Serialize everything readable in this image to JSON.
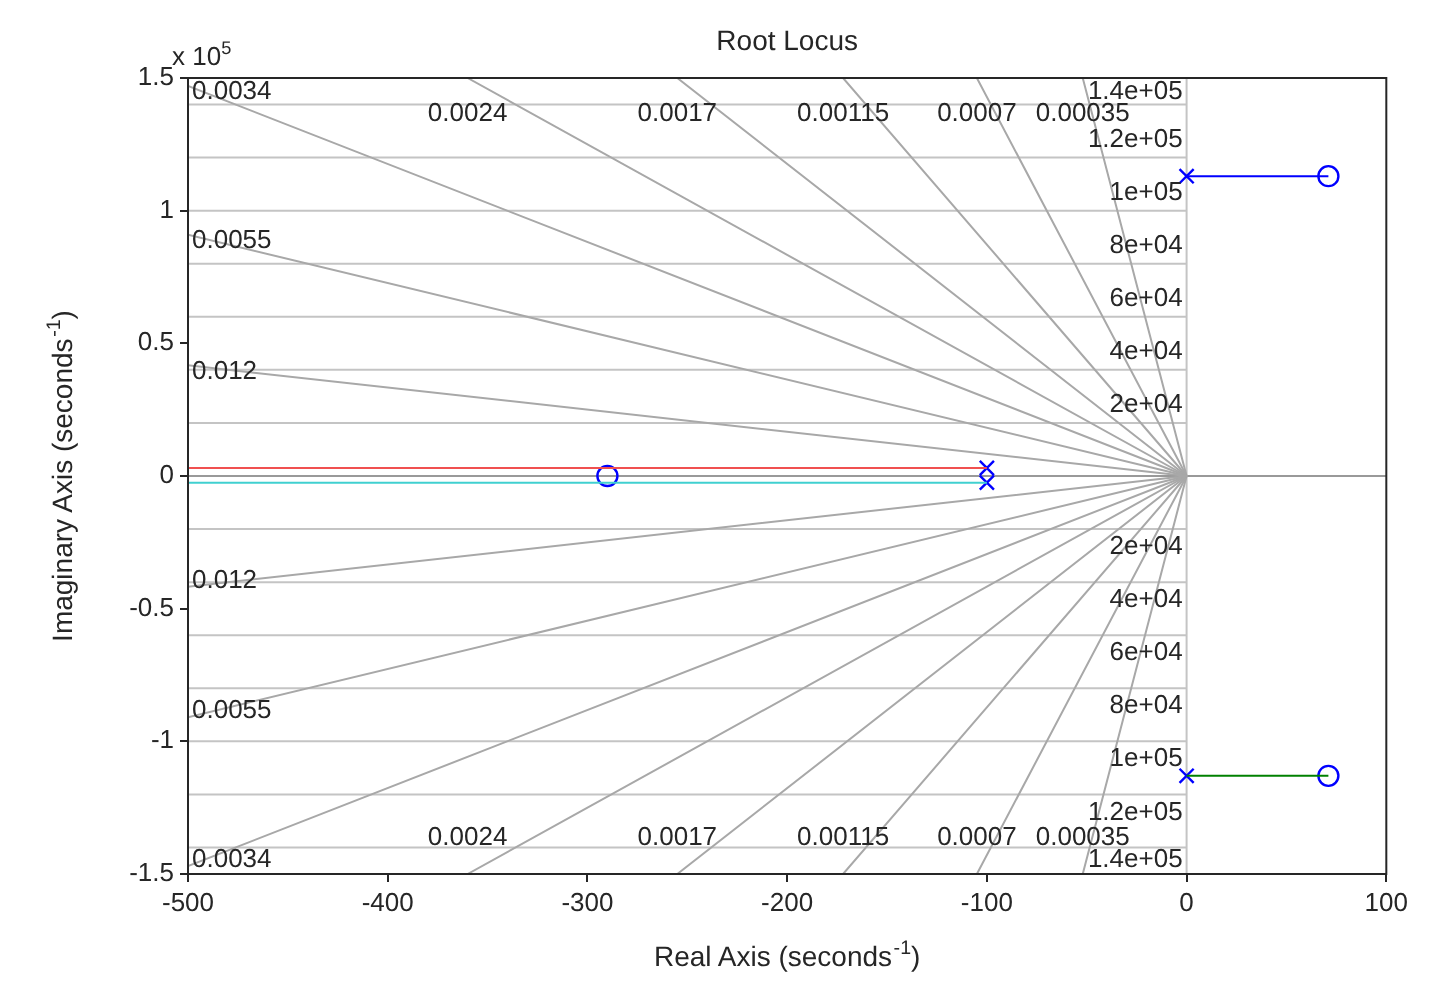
{
  "chart_data": {
    "type": "line",
    "title": "Root Locus",
    "xlabel": "Real Axis (seconds$^{-1}$)",
    "ylabel": "Imaginary Axis (seconds$^{-1}$)",
    "xlim": [
      -500,
      100
    ],
    "xticks": [
      -500,
      -400,
      -300,
      -200,
      -100,
      0,
      100
    ],
    "ylim": [
      -1.5,
      1.5
    ],
    "yticks": [
      -1.5,
      -1,
      -0.5,
      0,
      0.5,
      1,
      1.5
    ],
    "legend": false,
    "grid": false,
    "ref_lines": [
      {
        "axis": "x",
        "value": 0,
        "color": "#c4c4c4"
      },
      {
        "axis": "y",
        "value": 0,
        "color": "#999999"
      }
    ],
    "series": [
      {
        "color": "#a8a8a8",
        "x": [
          -500,
          0,
          -500
        ],
        "values": [
          0.417,
          0,
          -0.417
        ]
      },
      {
        "color": "#a8a8a8",
        "x": [
          -500,
          0,
          -500
        ],
        "values": [
          0.909,
          0,
          -0.909
        ]
      },
      {
        "color": "#a8a8a8",
        "x": [
          -500,
          0,
          -500
        ],
        "values": [
          1.47,
          0,
          -1.47
        ]
      },
      {
        "color": "#a8a8a8",
        "x": [
          -360,
          0,
          -360
        ],
        "values": [
          1.5,
          0,
          -1.5
        ]
      },
      {
        "color": "#a8a8a8",
        "x": [
          -255,
          0,
          -255
        ],
        "values": [
          1.5,
          0,
          -1.5
        ]
      },
      {
        "color": "#a8a8a8",
        "x": [
          -172,
          0,
          -172
        ],
        "values": [
          1.5,
          0,
          -1.5
        ]
      },
      {
        "color": "#a8a8a8",
        "x": [
          -105,
          0,
          -105
        ],
        "values": [
          1.5,
          0,
          -1.5
        ]
      },
      {
        "color": "#a8a8a8",
        "x": [
          -52,
          0,
          -52
        ],
        "values": [
          1.5,
          0,
          -1.5
        ]
      },
      {
        "color": "#c4c4c4",
        "x": [
          -500,
          0
        ],
        "values": [
          0.2,
          0.2
        ]
      },
      {
        "color": "#c4c4c4",
        "x": [
          -500,
          0
        ],
        "values": [
          0.4,
          0.4
        ]
      },
      {
        "color": "#c4c4c4",
        "x": [
          -500,
          0
        ],
        "values": [
          0.6,
          0.6
        ]
      },
      {
        "color": "#c4c4c4",
        "x": [
          -500,
          0
        ],
        "values": [
          0.8,
          0.8
        ]
      },
      {
        "color": "#c4c4c4",
        "x": [
          -500,
          0
        ],
        "values": [
          1,
          1
        ]
      },
      {
        "color": "#c4c4c4",
        "x": [
          -500,
          0
        ],
        "values": [
          1.2,
          1.2
        ]
      },
      {
        "color": "#c4c4c4",
        "x": [
          -500,
          0
        ],
        "values": [
          1.4,
          1.4
        ]
      },
      {
        "color": "#c4c4c4",
        "x": [
          -500,
          0
        ],
        "values": [
          -0.2,
          -0.2
        ]
      },
      {
        "color": "#c4c4c4",
        "x": [
          -500,
          0
        ],
        "values": [
          -0.4,
          -0.4
        ]
      },
      {
        "color": "#c4c4c4",
        "x": [
          -500,
          0
        ],
        "values": [
          -0.6,
          -0.6
        ]
      },
      {
        "color": "#c4c4c4",
        "x": [
          -500,
          0
        ],
        "values": [
          -0.8,
          -0.8
        ]
      },
      {
        "color": "#c4c4c4",
        "x": [
          -500,
          0
        ],
        "values": [
          -1,
          -1
        ]
      },
      {
        "color": "#c4c4c4",
        "x": [
          -500,
          0
        ],
        "values": [
          -1.2,
          -1.2
        ]
      },
      {
        "color": "#c4c4c4",
        "x": [
          -500,
          0
        ],
        "values": [
          -1.4,
          -1.4
        ]
      },
      {
        "color": "#f05050",
        "x": [
          -500,
          -100
        ],
        "values": [
          0.03,
          0.03
        ]
      },
      {
        "color": "#40d0d0",
        "x": [
          -500,
          -100
        ],
        "values": [
          -0.025,
          -0.025
        ]
      },
      {
        "color": "#0000ff",
        "x": [
          0,
          71
        ],
        "values": [
          1.13,
          1.13
        ]
      },
      {
        "color": "#008000",
        "x": [
          0,
          71
        ],
        "values": [
          -1.13,
          -1.13
        ]
      },
      {
        "type": "scatter",
        "marker": "cross",
        "color": "#0000ff",
        "x": [
          -100,
          -100,
          0,
          0
        ],
        "values": [
          0.03,
          -0.025,
          1.13,
          -1.13
        ]
      },
      {
        "type": "scatter",
        "marker": "circle",
        "color": "#0000ff",
        "x": [
          -290,
          71,
          71
        ],
        "values": [
          0,
          1.13,
          -1.13
        ]
      }
    ],
    "annotations": [
      "x 10$^{5}$",
      {
        "text": "0.0034",
        "x": -500,
        "y": 1.47
      },
      {
        "text": "0.0024",
        "x": -360,
        "y": 1.5
      },
      {
        "text": "0.0017",
        "x": -255,
        "y": 1.5
      },
      {
        "text": "0.00115",
        "x": -172,
        "y": 1.5
      },
      {
        "text": "0.0007",
        "x": -105,
        "y": 1.5
      },
      {
        "text": "0.00035",
        "x": -52,
        "y": 1.5
      },
      {
        "text": "0.0055",
        "x": -500,
        "y": 0.909
      },
      {
        "text": "0.012",
        "x": -500,
        "y": 0.417
      },
      {
        "text": "0.0034",
        "x": -500,
        "y": -1.47
      },
      {
        "text": "0.0024",
        "x": -360,
        "y": -1.5
      },
      {
        "text": "0.0017",
        "x": -255,
        "y": -1.5
      },
      {
        "text": "0.00115",
        "x": -172,
        "y": -1.5
      },
      {
        "text": "0.0007",
        "x": -105,
        "y": -1.5
      },
      {
        "text": "0.00035",
        "x": -52,
        "y": -1.5
      },
      {
        "text": "0.0055",
        "x": -500,
        "y": -0.909
      },
      {
        "text": "0.012",
        "x": -500,
        "y": -0.417
      },
      {
        "text": "2e+04",
        "x": 0,
        "y": 0.2
      },
      {
        "text": "4e+04",
        "x": 0,
        "y": 0.4
      },
      {
        "text": "6e+04",
        "x": 0,
        "y": 0.6
      },
      {
        "text": "8e+04",
        "x": 0,
        "y": 0.8
      },
      {
        "text": "1e+05",
        "x": 0,
        "y": 1
      },
      {
        "text": "1.2e+05",
        "x": 0,
        "y": 1.2
      },
      {
        "text": "1.4e+05",
        "x": 0,
        "y": 1.4
      },
      {
        "text": "2e+04",
        "x": 0,
        "y": -0.2
      },
      {
        "text": "4e+04",
        "x": 0,
        "y": -0.4
      },
      {
        "text": "6e+04",
        "x": 0,
        "y": -0.6
      },
      {
        "text": "8e+04",
        "x": 0,
        "y": -0.8
      },
      {
        "text": "1e+05",
        "x": 0,
        "y": -1
      },
      {
        "text": "1.2e+05",
        "x": 0,
        "y": -1.2
      },
      {
        "text": "1.4e+05",
        "x": 0,
        "y": -1.4
      }
    ]
  }
}
